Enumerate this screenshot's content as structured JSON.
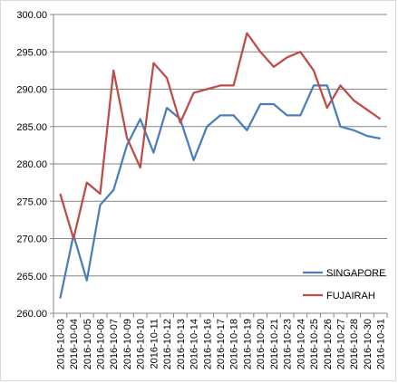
{
  "chart_data": {
    "type": "line",
    "categories": [
      "2016-10-03",
      "2016-10-04",
      "2016-10-05",
      "2016-10-06",
      "2016-10-07",
      "2016-10-09",
      "2016-10-10",
      "2016-10-11",
      "2016-10-12",
      "2016-10-13",
      "2016-10-14",
      "2016-10-16",
      "2016-10-17",
      "2016-10-18",
      "2016-10-19",
      "2016-10-20",
      "2016-10-21",
      "2016-10-23",
      "2016-10-24",
      "2016-10-25",
      "2016-10-26",
      "2016-10-27",
      "2016-10-28",
      "2016-10-30",
      "2016-10-31"
    ],
    "series": [
      {
        "name": "SINGAPORE",
        "color": "#4a7ebb",
        "values": [
          262.0,
          270.5,
          264.4,
          274.5,
          276.5,
          282.5,
          286.0,
          281.5,
          287.5,
          286.0,
          280.5,
          285.0,
          286.5,
          286.5,
          284.5,
          288.0,
          288.0,
          286.5,
          286.5,
          290.5,
          290.5,
          285.0,
          284.5,
          283.75,
          283.4
        ]
      },
      {
        "name": "FUJAIRAH",
        "color": "#be4b48",
        "values": [
          276.0,
          270.0,
          277.5,
          276.0,
          292.5,
          283.5,
          279.5,
          293.5,
          291.5,
          285.5,
          289.5,
          290.0,
          290.5,
          290.5,
          297.5,
          295.0,
          293.0,
          294.25,
          295.0,
          292.5,
          287.5,
          290.5,
          288.5,
          287.25,
          286.0
        ]
      }
    ],
    "yticks": [
      "260.00",
      "265.00",
      "270.00",
      "275.00",
      "280.00",
      "285.00",
      "290.00",
      "295.00",
      "300.00"
    ],
    "ylim": [
      260,
      300
    ],
    "title": "",
    "xlabel": "",
    "ylabel": "",
    "grid": "horizontal",
    "legend_position": "right"
  }
}
